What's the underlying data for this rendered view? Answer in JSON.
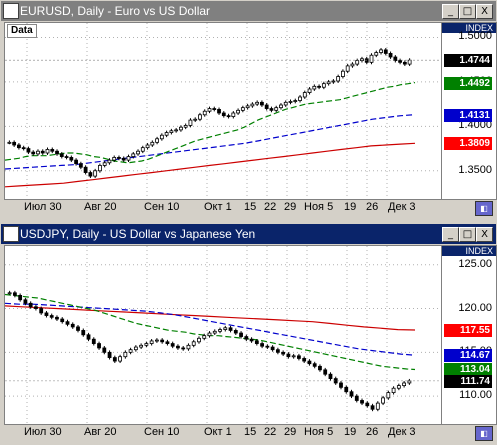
{
  "windows": [
    {
      "title": "EURUSD, Daily - Euro vs US Dollar",
      "data_label": "Data",
      "index_label": "INDEX",
      "x_labels": [
        "Июл 30",
        "Авг 20",
        "Сен 10",
        "Окт 1",
        "15",
        "22",
        "29",
        "Ноя 5",
        "19",
        "26",
        "Дек 3"
      ],
      "y_ticks": [
        "1.5000",
        "1.4500",
        "1.4000",
        "1.3500"
      ],
      "price_tags": [
        {
          "label": "1.4744",
          "value": 1.4744,
          "bg": "#000000",
          "fg": "#ffffff"
        },
        {
          "label": "1.4492",
          "value": 1.4492,
          "bg": "#008000",
          "fg": "#ffffff"
        },
        {
          "label": "1.4131",
          "value": 1.4131,
          "bg": "#0000cc",
          "fg": "#ffffff"
        },
        {
          "label": "1.3809",
          "value": 1.3809,
          "bg": "#ff0000",
          "fg": "#ffffff"
        }
      ]
    },
    {
      "title": "USDJPY, Daily - US Dollar vs Japanese Yen",
      "index_label": "INDEX",
      "x_labels": [
        "Июл 30",
        "Авг 20",
        "Сен 10",
        "Окт 1",
        "15",
        "22",
        "29",
        "Ноя 5",
        "19",
        "26",
        "Дек 3"
      ],
      "y_ticks": [
        "125.00",
        "120.00",
        "115.00",
        "110.00"
      ],
      "price_tags": [
        {
          "label": "117.55",
          "value": 117.55,
          "bg": "#ff0000",
          "fg": "#ffffff"
        },
        {
          "label": "114.67",
          "value": 114.67,
          "bg": "#0000cc",
          "fg": "#ffffff"
        },
        {
          "label": "113.04",
          "value": 113.04,
          "bg": "#008000",
          "fg": "#ffffff"
        },
        {
          "label": "111.74",
          "value": 111.74,
          "bg": "#000000",
          "fg": "#ffffff"
        }
      ]
    }
  ],
  "window_buttons": {
    "min": "_",
    "max": "□",
    "close": "X"
  },
  "chart_data": [
    {
      "type": "candlestick",
      "title": "EURUSD, Daily - Euro vs US Dollar",
      "ylim": [
        1.325,
        1.505
      ],
      "colors": {
        "up": "#008000",
        "down": "#ff0000",
        "ma_fast": "#008000",
        "ma_mid": "#0000cc",
        "ma_slow": "#cc0000"
      },
      "close": [
        1.382,
        1.379,
        1.376,
        1.375,
        1.371,
        1.369,
        1.372,
        1.37,
        1.374,
        1.372,
        1.369,
        1.366,
        1.365,
        1.362,
        1.358,
        1.354,
        1.348,
        1.344,
        1.35,
        1.356,
        1.359,
        1.362,
        1.365,
        1.364,
        1.362,
        1.366,
        1.369,
        1.372,
        1.376,
        1.379,
        1.382,
        1.386,
        1.39,
        1.393,
        1.395,
        1.396,
        1.399,
        1.401,
        1.407,
        1.408,
        1.413,
        1.417,
        1.42,
        1.419,
        1.415,
        1.412,
        1.411,
        1.415,
        1.418,
        1.421,
        1.423,
        1.425,
        1.427,
        1.424,
        1.42,
        1.418,
        1.421,
        1.424,
        1.427,
        1.428,
        1.429,
        1.433,
        1.438,
        1.442,
        1.445,
        1.444,
        1.448,
        1.45,
        1.451,
        1.456,
        1.462,
        1.468,
        1.47,
        1.474,
        1.476,
        1.472,
        1.48,
        1.483,
        1.486,
        1.482,
        1.478,
        1.474,
        1.472,
        1.47,
        1.4744
      ],
      "ma_fast": [
        1.362,
        1.363,
        1.364,
        1.366,
        1.367,
        1.367,
        1.367,
        1.368,
        1.369,
        1.37,
        1.37,
        1.369,
        1.368,
        1.366,
        1.365,
        1.363,
        1.361,
        1.36,
        1.359,
        1.36,
        1.361,
        1.363,
        1.366,
        1.369,
        1.372,
        1.375,
        1.378,
        1.381,
        1.384,
        1.386,
        1.388,
        1.39,
        1.392,
        1.394,
        1.396,
        1.399,
        1.403,
        1.407,
        1.41,
        1.413,
        1.416,
        1.419,
        1.421,
        1.423,
        1.425,
        1.426,
        1.427,
        1.428,
        1.429,
        1.43,
        1.432,
        1.434,
        1.436,
        1.438,
        1.44,
        1.442,
        1.444,
        1.445,
        1.447,
        1.448,
        1.4492
      ],
      "ma_mid": [
        1.352,
        1.353,
        1.354,
        1.355,
        1.356,
        1.357,
        1.359,
        1.361,
        1.363,
        1.365,
        1.367,
        1.369,
        1.371,
        1.373,
        1.375,
        1.377,
        1.379,
        1.381,
        1.384,
        1.387,
        1.39,
        1.393,
        1.396,
        1.399,
        1.402,
        1.405,
        1.408,
        1.41,
        1.412,
        1.4131
      ],
      "ma_slow": [
        1.332,
        1.333,
        1.334,
        1.335,
        1.336,
        1.338,
        1.34,
        1.342,
        1.344,
        1.346,
        1.348,
        1.35,
        1.352,
        1.354,
        1.356,
        1.358,
        1.36,
        1.362,
        1.364,
        1.366,
        1.368,
        1.37,
        1.372,
        1.374,
        1.376,
        1.378,
        1.379,
        1.38,
        1.3809
      ]
    },
    {
      "type": "candlestick",
      "title": "USDJPY, Daily - US Dollar vs Japanese Yen",
      "ylim": [
        107.5,
        126.0
      ],
      "colors": {
        "up": "#008000",
        "down": "#ff0000",
        "ma_fast": "#008000",
        "ma_mid": "#0000cc",
        "ma_slow": "#cc0000"
      },
      "close": [
        121.8,
        121.5,
        121.0,
        120.6,
        120.2,
        120.0,
        119.5,
        119.2,
        119.0,
        118.8,
        118.5,
        118.2,
        117.9,
        117.5,
        117.0,
        116.5,
        116.0,
        115.5,
        115.0,
        114.4,
        114.0,
        114.5,
        115.0,
        115.3,
        115.6,
        115.8,
        116.0,
        116.3,
        116.4,
        116.2,
        116.0,
        115.7,
        115.5,
        115.4,
        115.8,
        116.2,
        116.6,
        116.9,
        117.2,
        117.4,
        117.6,
        117.8,
        117.5,
        117.2,
        116.8,
        116.5,
        116.3,
        116.0,
        115.7,
        115.6,
        115.3,
        115.0,
        114.8,
        114.5,
        114.6,
        114.3,
        114.0,
        113.7,
        113.4,
        113.0,
        112.5,
        112.0,
        111.5,
        111.0,
        110.5,
        110.0,
        109.5,
        109.2,
        108.9,
        108.5,
        109.2,
        109.8,
        110.4,
        110.9,
        111.2,
        111.5,
        111.74
      ],
      "ma_fast": [
        121.6,
        121.5,
        121.4,
        121.3,
        121.2,
        121.0,
        120.8,
        120.6,
        120.4,
        120.2,
        120.0,
        119.8,
        119.5,
        119.2,
        118.9,
        118.6,
        118.3,
        118.1,
        117.9,
        117.7,
        117.5,
        117.4,
        117.3,
        117.1,
        117.0,
        116.9,
        116.9,
        116.8,
        116.7,
        116.6,
        116.5,
        116.4,
        116.2,
        116.0,
        115.8,
        115.6,
        115.4,
        115.2,
        115.0,
        114.8,
        114.6,
        114.4,
        114.2,
        114.0,
        113.8,
        113.6,
        113.4,
        113.3,
        113.2,
        113.1,
        113.04
      ],
      "ma_mid": [
        120.6,
        120.5,
        120.5,
        120.4,
        120.3,
        120.2,
        120.1,
        120.0,
        119.9,
        119.8,
        119.7,
        119.5,
        119.3,
        119.0,
        118.7,
        118.4,
        118.1,
        117.8,
        117.5,
        117.2,
        116.9,
        116.6,
        116.3,
        116.0,
        115.7,
        115.4,
        115.2,
        115.0,
        114.8,
        114.67
      ],
      "ma_slow": [
        120.3,
        120.2,
        120.1,
        120.0,
        119.9,
        119.8,
        119.7,
        119.6,
        119.5,
        119.4,
        119.3,
        119.2,
        119.1,
        119.0,
        118.9,
        118.8,
        118.7,
        118.6,
        118.5,
        118.3,
        118.1,
        117.9,
        117.75,
        117.6,
        117.55
      ]
    }
  ]
}
